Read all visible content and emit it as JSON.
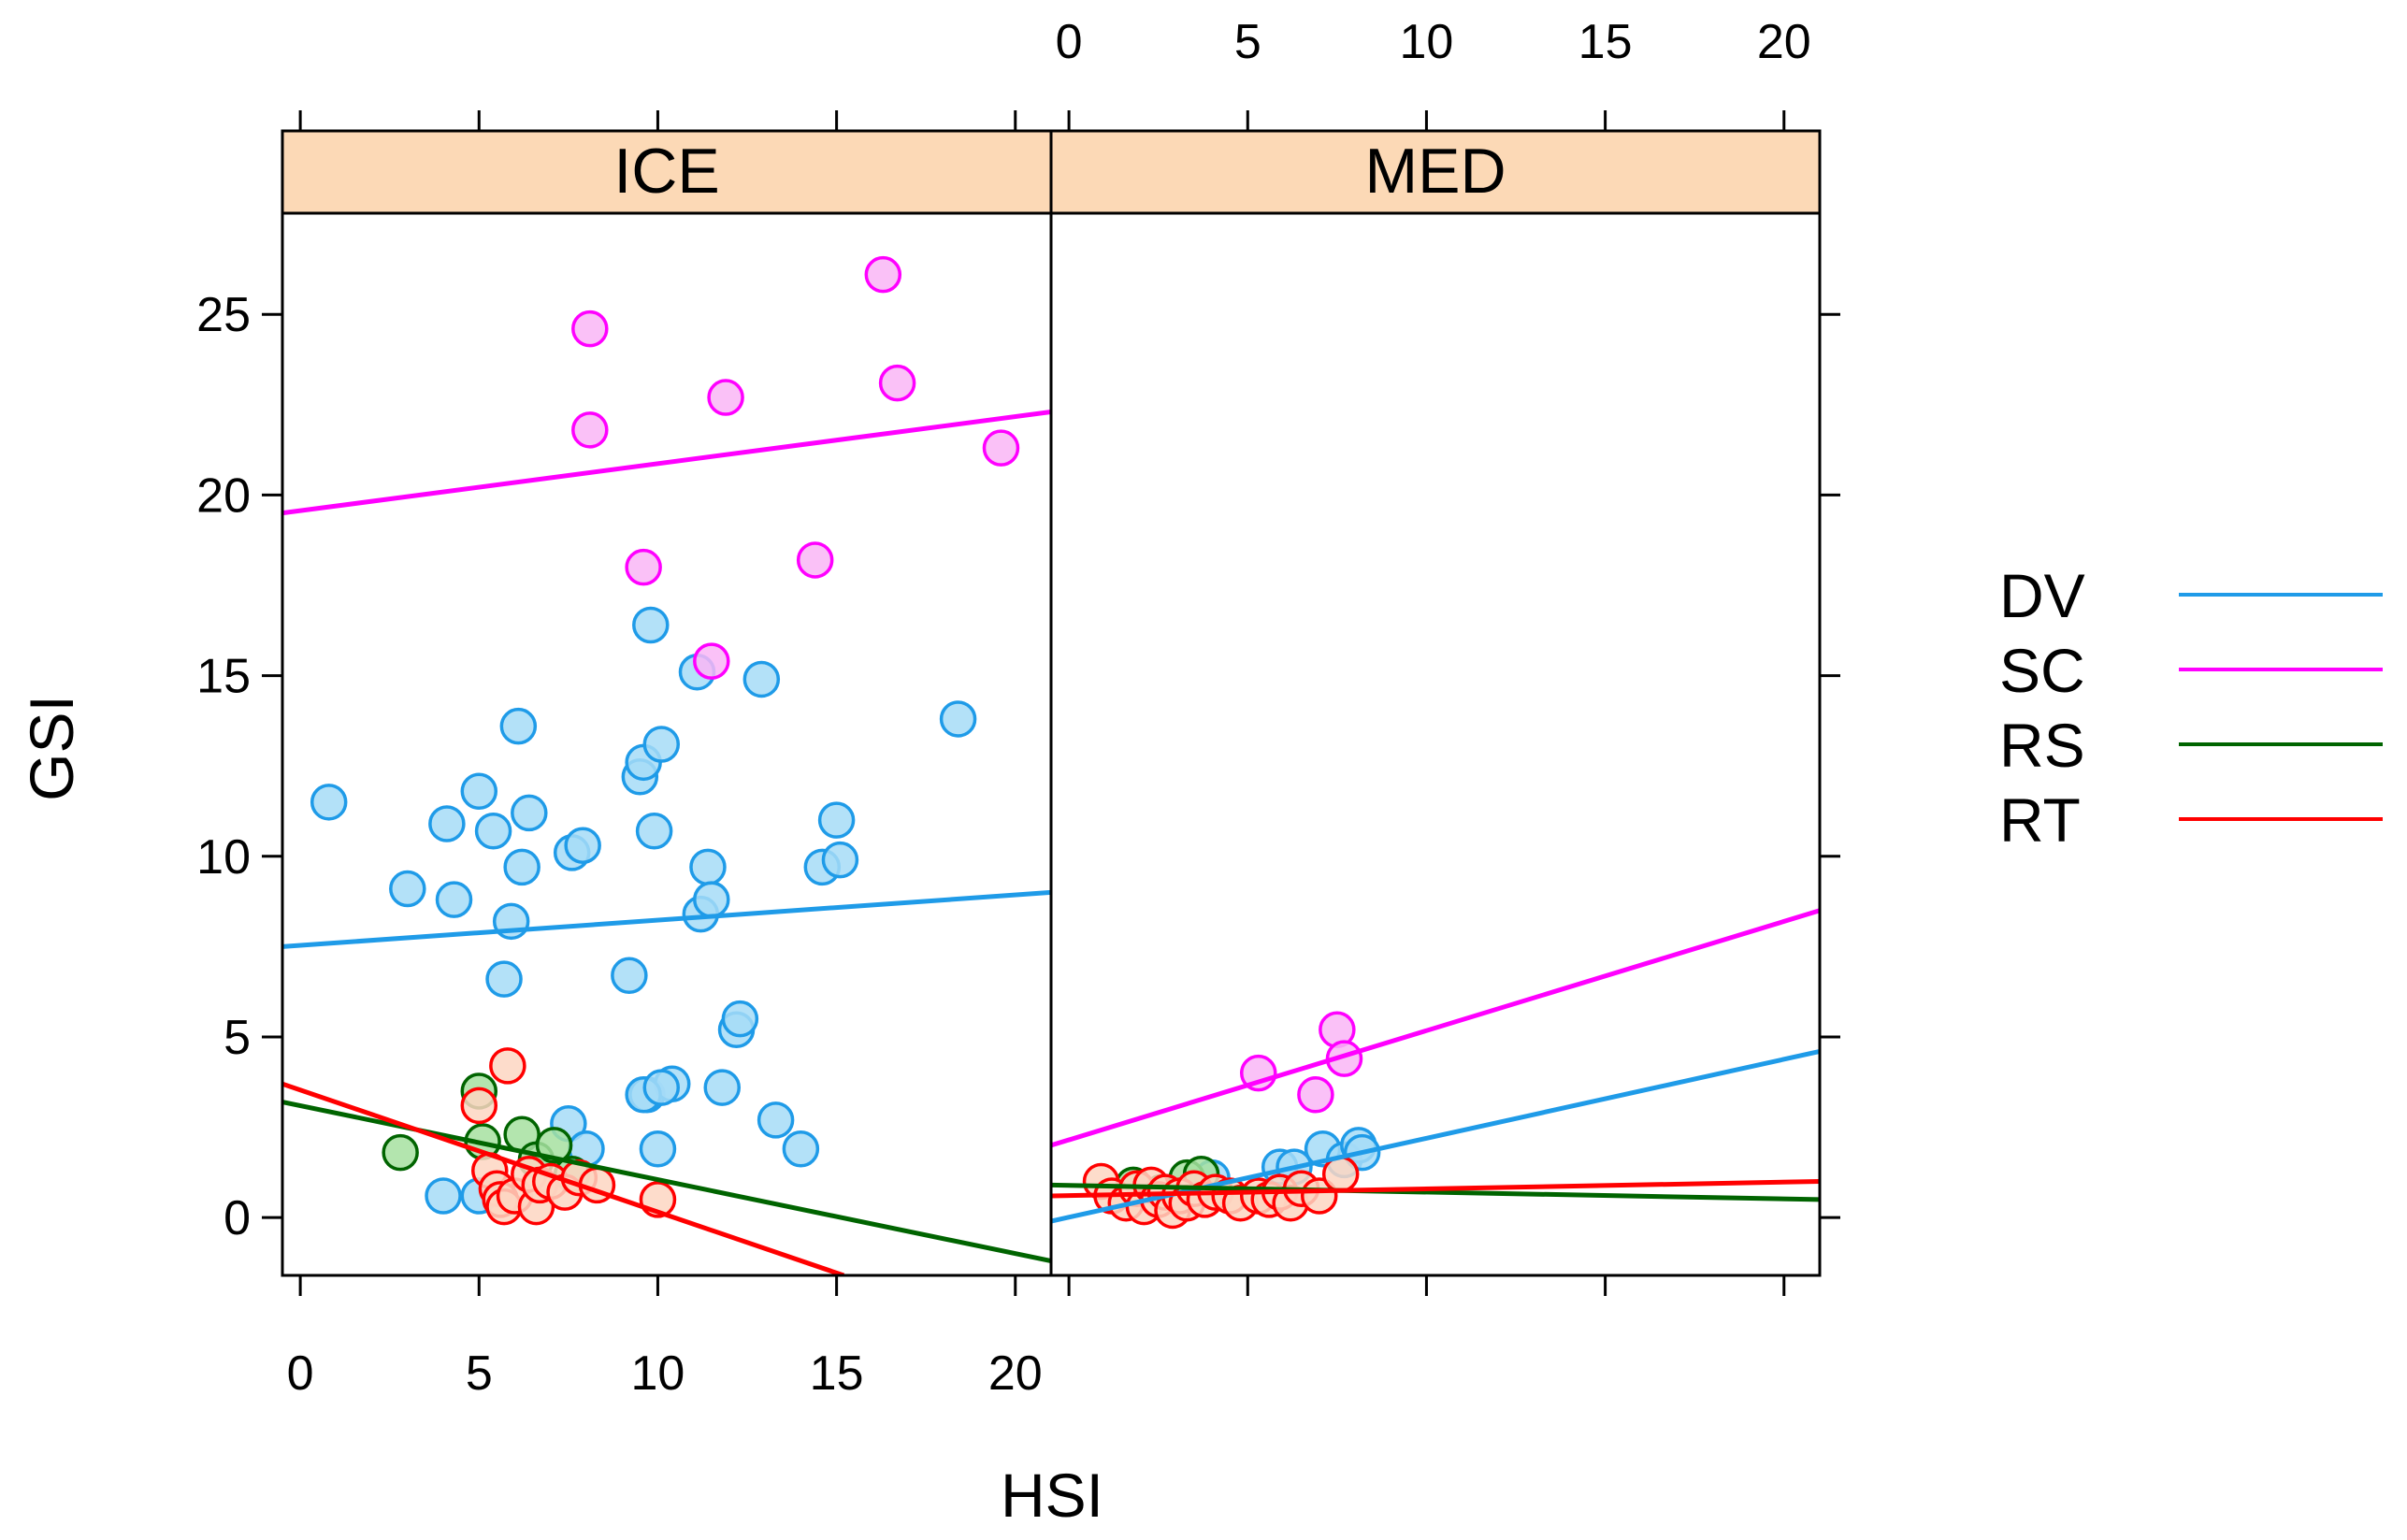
{
  "chart_data": {
    "type": "scatter",
    "xlabel": "HSI",
    "ylabel": "GSI",
    "xlim": [
      -0.5,
      21
    ],
    "ylim": [
      -1.6,
      27.8
    ],
    "xticks": [
      0,
      5,
      10,
      15,
      20
    ],
    "yticks": [
      0,
      5,
      10,
      15,
      20,
      25
    ],
    "legend_position": "right",
    "grid": false,
    "series_colors": {
      "DV": "#1f9be8",
      "SC": "#ff00ff",
      "RS": "#006400",
      "RT": "#ff0000"
    },
    "point_fills": {
      "DV": "#a6dcf7",
      "SC": "#f9b6f6",
      "RS": "#a6e0a0",
      "RT": "#fdd6c2"
    },
    "legend": [
      {
        "name": "DV",
        "color": "#1f9be8"
      },
      {
        "name": "SC",
        "color": "#ff00ff"
      },
      {
        "name": "RS",
        "color": "#006400"
      },
      {
        "name": "RT",
        "color": "#ff0000"
      }
    ],
    "panels": [
      {
        "label": "ICE",
        "lines": [
          {
            "series": "DV",
            "x": [
              -0.5,
              21
            ],
            "y": [
              7.5,
              9.0
            ]
          },
          {
            "series": "SC",
            "x": [
              -0.5,
              21
            ],
            "y": [
              19.5,
              22.3
            ]
          },
          {
            "series": "RS",
            "x": [
              -0.5,
              21
            ],
            "y": [
              3.2,
              -1.2
            ]
          },
          {
            "series": "RT",
            "x": [
              -0.5,
              15.2
            ],
            "y": [
              3.7,
              -1.6
            ]
          }
        ],
        "points": [
          {
            "series": "DV",
            "x": [
              0.8,
              3.0,
              4.1,
              4.3,
              5.0,
              5.4,
              5.7,
              5.9,
              6.1,
              6.2,
              6.4,
              7.6,
              7.9,
              9.2,
              9.5,
              9.6,
              9.7,
              9.8,
              9.9,
              10.1,
              10.4,
              11.1,
              11.2,
              11.4,
              11.5,
              11.8,
              12.2,
              12.3,
              12.9,
              13.3,
              14.0,
              14.6,
              15.0,
              15.1,
              18.4,
              4.0,
              5.0,
              7.5,
              8.0,
              9.6,
              10.0,
              10.1
            ],
            "y": [
              11.5,
              9.1,
              10.9,
              8.8,
              11.8,
              10.7,
              6.6,
              8.2,
              13.6,
              9.7,
              11.2,
              10.1,
              10.3,
              6.7,
              12.2,
              12.6,
              3.4,
              16.4,
              10.7,
              13.1,
              3.7,
              15.1,
              8.4,
              9.7,
              8.8,
              3.6,
              5.2,
              5.5,
              14.9,
              2.7,
              1.9,
              9.7,
              11.0,
              9.9,
              13.8,
              0.6,
              0.6,
              2.6,
              1.9,
              3.4,
              1.9,
              3.6
            ]
          },
          {
            "series": "SC",
            "x": [
              8.1,
              8.1,
              9.6,
              11.5,
              11.9,
              14.4,
              16.3,
              16.7,
              19.6
            ],
            "y": [
              24.6,
              21.8,
              18.0,
              15.4,
              22.7,
              18.2,
              26.1,
              23.1,
              21.3
            ]
          },
          {
            "series": "RS",
            "x": [
              2.8,
              5.0,
              5.1,
              6.2,
              6.6,
              7.1,
              7.6
            ],
            "y": [
              1.8,
              3.5,
              2.1,
              2.3,
              1.6,
              2.0,
              1.2
            ]
          },
          {
            "series": "RT",
            "x": [
              5.0,
              5.3,
              5.5,
              5.6,
              5.7,
              5.8,
              6.0,
              6.4,
              6.6,
              6.7,
              7.0,
              7.4,
              7.8,
              8.3,
              10.0
            ],
            "y": [
              3.1,
              1.3,
              0.8,
              0.5,
              0.3,
              4.2,
              0.6,
              1.2,
              0.3,
              0.9,
              1.0,
              0.7,
              1.1,
              0.9,
              0.5
            ]
          }
        ]
      },
      {
        "label": "MED",
        "lines": [
          {
            "series": "DV",
            "x": [
              -0.5,
              21
            ],
            "y": [
              -0.1,
              4.6
            ]
          },
          {
            "series": "SC",
            "x": [
              -0.5,
              21
            ],
            "y": [
              2.0,
              8.5
            ]
          },
          {
            "series": "RS",
            "x": [
              -0.5,
              21
            ],
            "y": [
              0.9,
              0.5
            ]
          },
          {
            "series": "RT",
            "x": [
              -0.5,
              21
            ],
            "y": [
              0.6,
              1.0
            ]
          }
        ],
        "points": [
          {
            "series": "DV",
            "x": [
              4.0,
              5.9,
              6.3,
              7.1,
              7.7,
              8.1,
              8.2
            ],
            "y": [
              1.1,
              1.4,
              1.4,
              1.9,
              1.6,
              2.0,
              1.8
            ]
          },
          {
            "series": "SC",
            "x": [
              5.3,
              6.9,
              7.5,
              7.7
            ],
            "y": [
              4.0,
              3.4,
              5.2,
              4.4
            ]
          },
          {
            "series": "RS",
            "x": [
              1.8,
              2.6,
              3.3,
              3.7
            ],
            "y": [
              0.9,
              0.7,
              1.1,
              1.2
            ]
          },
          {
            "series": "RT",
            "x": [
              0.9,
              1.2,
              1.6,
              1.9,
              2.1,
              2.3,
              2.5,
              2.7,
              2.9,
              3.1,
              3.3,
              3.5,
              3.8,
              4.1,
              4.5,
              4.8,
              5.3,
              5.6,
              5.9,
              6.2,
              6.5,
              7.0,
              7.6
            ],
            "y": [
              1.0,
              0.6,
              0.4,
              0.8,
              0.3,
              0.9,
              0.5,
              0.7,
              0.2,
              0.6,
              0.4,
              0.8,
              0.5,
              0.7,
              0.6,
              0.4,
              0.6,
              0.5,
              0.7,
              0.4,
              0.8,
              0.6,
              1.2
            ]
          }
        ]
      }
    ]
  }
}
